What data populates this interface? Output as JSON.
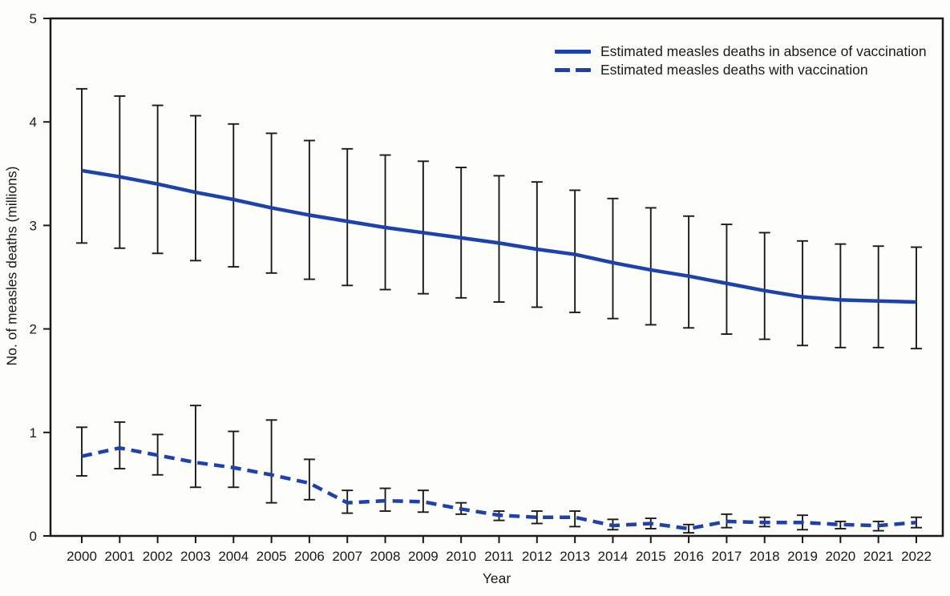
{
  "figure": {
    "background_color": "#fdfdf9",
    "axis_color": "#1a1a1a"
  },
  "chart_data": {
    "type": "line",
    "title": "",
    "xlabel": "Year",
    "ylabel": "No. of measles deaths (millions)",
    "ylim": [
      0,
      5
    ],
    "yticks": [
      "0",
      "1",
      "2",
      "3",
      "4",
      "5"
    ],
    "grid": false,
    "legend_position": "top-right-inside",
    "line_color": "#1d41ad",
    "error_bar_color": "#1a1a1a",
    "x": [
      2000,
      2001,
      2002,
      2003,
      2004,
      2005,
      2006,
      2007,
      2008,
      2009,
      2010,
      2011,
      2012,
      2013,
      2014,
      2015,
      2016,
      2017,
      2018,
      2019,
      2020,
      2021,
      2022
    ],
    "series": [
      {
        "name": "Estimated measles deaths in absence of vaccination",
        "style": "solid",
        "values": [
          3.53,
          3.47,
          3.4,
          3.32,
          3.25,
          3.17,
          3.1,
          3.04,
          2.98,
          2.93,
          2.88,
          2.83,
          2.77,
          2.72,
          2.64,
          2.57,
          2.51,
          2.44,
          2.37,
          2.31,
          2.28,
          2.27,
          2.26
        ],
        "ci_low": [
          2.83,
          2.78,
          2.73,
          2.66,
          2.6,
          2.54,
          2.48,
          2.42,
          2.38,
          2.34,
          2.3,
          2.26,
          2.21,
          2.16,
          2.1,
          2.04,
          2.01,
          1.95,
          1.9,
          1.84,
          1.82,
          1.82,
          1.81
        ],
        "ci_high": [
          4.32,
          4.25,
          4.16,
          4.06,
          3.98,
          3.89,
          3.82,
          3.74,
          3.68,
          3.62,
          3.56,
          3.48,
          3.42,
          3.34,
          3.26,
          3.17,
          3.09,
          3.01,
          2.93,
          2.85,
          2.82,
          2.8,
          2.79
        ]
      },
      {
        "name": "Estimated measles deaths with vaccination",
        "style": "dashed",
        "values": [
          0.77,
          0.85,
          0.78,
          0.71,
          0.66,
          0.59,
          0.51,
          0.32,
          0.34,
          0.33,
          0.26,
          0.2,
          0.18,
          0.18,
          0.1,
          0.12,
          0.07,
          0.14,
          0.13,
          0.13,
          0.11,
          0.1,
          0.13
        ],
        "ci_low": [
          0.58,
          0.65,
          0.59,
          0.47,
          0.47,
          0.32,
          0.35,
          0.22,
          0.24,
          0.23,
          0.21,
          0.15,
          0.12,
          0.09,
          0.06,
          0.07,
          0.03,
          0.08,
          0.09,
          0.06,
          0.07,
          0.05,
          0.08
        ],
        "ci_high": [
          1.05,
          1.1,
          0.98,
          1.26,
          1.01,
          1.12,
          0.74,
          0.44,
          0.46,
          0.44,
          0.32,
          0.24,
          0.24,
          0.24,
          0.16,
          0.17,
          0.11,
          0.21,
          0.18,
          0.2,
          0.14,
          0.14,
          0.18
        ]
      }
    ]
  }
}
